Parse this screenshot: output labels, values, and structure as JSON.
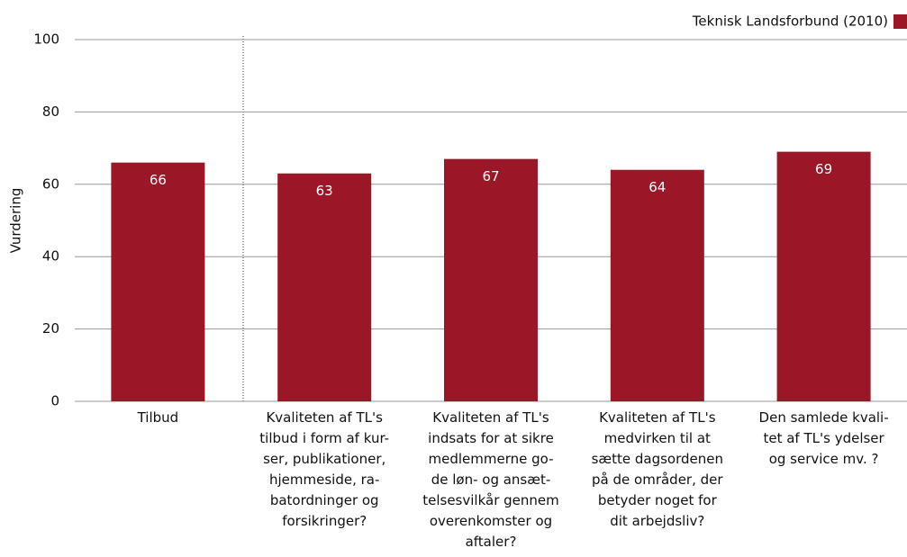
{
  "chart_data": {
    "type": "bar",
    "y_label": "Vurdering",
    "categories": [
      "Tilbud",
      "Kvaliteten af TL's\ntilbud i form af kur-\nser, publikationer,\nhjemmeside, ra-\nbatordninger og\nforsikringer?",
      "Kvaliteten af TL's\nindsats for at sikre\nmedlemmerne go-\nde løn- og ansæt-\ntelsesvilkår gennem\noverenkomster og\naftaler?",
      "Kvaliteten af TL's\nmedvirken til at\nsætte dagsordenen\npå de områder, der\nbetyder noget for\ndit arbejdsliv?",
      "Den samlede kvali-\ntet af TL's ydelser\nog service mv. ?"
    ],
    "series": [
      {
        "name": "Teknisk Landsforbund (2010)",
        "color": "#9b1728",
        "values": [
          66,
          63,
          67,
          64,
          69
        ]
      }
    ],
    "ylim": [
      0,
      100
    ],
    "yticks": [
      0,
      20,
      40,
      60,
      80,
      100
    ],
    "grid": true,
    "legend": "top-right"
  }
}
